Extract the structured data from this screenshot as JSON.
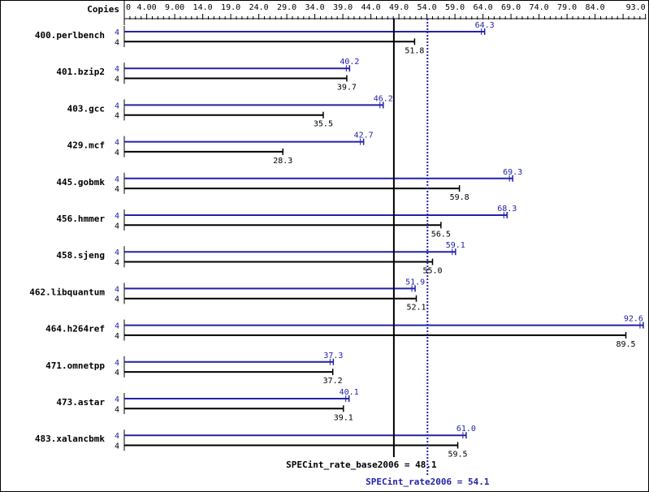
{
  "chart_data": {
    "type": "bar",
    "orientation": "horizontal",
    "copies_header": "Copies",
    "xlim": [
      0,
      93
    ],
    "tick_labels": [
      "0",
      "4.00",
      "9.00",
      "14.0",
      "19.0",
      "24.0",
      "29.0",
      "34.0",
      "39.0",
      "44.0",
      "49.0",
      "54.0",
      "59.0",
      "64.0",
      "69.0",
      "74.0",
      "79.0",
      "84.0",
      "93.0"
    ],
    "tick_values": [
      0,
      4,
      9,
      14,
      19,
      24,
      29,
      34,
      39,
      44,
      49,
      54,
      59,
      64,
      69,
      74,
      79,
      84,
      93
    ],
    "categories": [
      "400.perlbench",
      "401.bzip2",
      "403.gcc",
      "429.mcf",
      "445.gobmk",
      "456.hmmer",
      "458.sjeng",
      "462.libquantum",
      "464.h264ref",
      "471.omnetpp",
      "473.astar",
      "483.xalancbmk"
    ],
    "series": [
      {
        "key": "peak",
        "color": "#2222aa",
        "copies": [
          4,
          4,
          4,
          4,
          4,
          4,
          4,
          4,
          4,
          4,
          4,
          4
        ],
        "values": [
          64.3,
          40.2,
          46.2,
          42.7,
          69.3,
          68.3,
          59.1,
          51.9,
          92.6,
          37.3,
          40.1,
          61.0
        ],
        "labels": [
          "64.3",
          "40.2",
          "46.2",
          "42.7",
          "69.3",
          "68.3",
          "59.1",
          "51.9",
          "92.6",
          "37.3",
          "40.1",
          "61.0"
        ]
      },
      {
        "key": "base",
        "color": "#000000",
        "copies": [
          4,
          4,
          4,
          4,
          4,
          4,
          4,
          4,
          4,
          4,
          4,
          4
        ],
        "values": [
          51.8,
          39.7,
          35.5,
          28.3,
          59.8,
          56.5,
          55.0,
          52.1,
          89.5,
          37.2,
          39.1,
          59.5
        ],
        "labels": [
          "51.8",
          "39.7",
          "35.5",
          "28.3",
          "59.8",
          "56.5",
          "55.0",
          "52.1",
          "89.5",
          "37.2",
          "39.1",
          "59.5"
        ]
      }
    ],
    "reference_lines": [
      {
        "label": "SPECint_rate_base2006 = 48.1",
        "value": 48.1,
        "color": "#000000",
        "style": "solid"
      },
      {
        "label": "SPECint_rate2006 = 54.1",
        "value": 54.1,
        "color": "#2222aa",
        "style": "dotted"
      }
    ]
  }
}
